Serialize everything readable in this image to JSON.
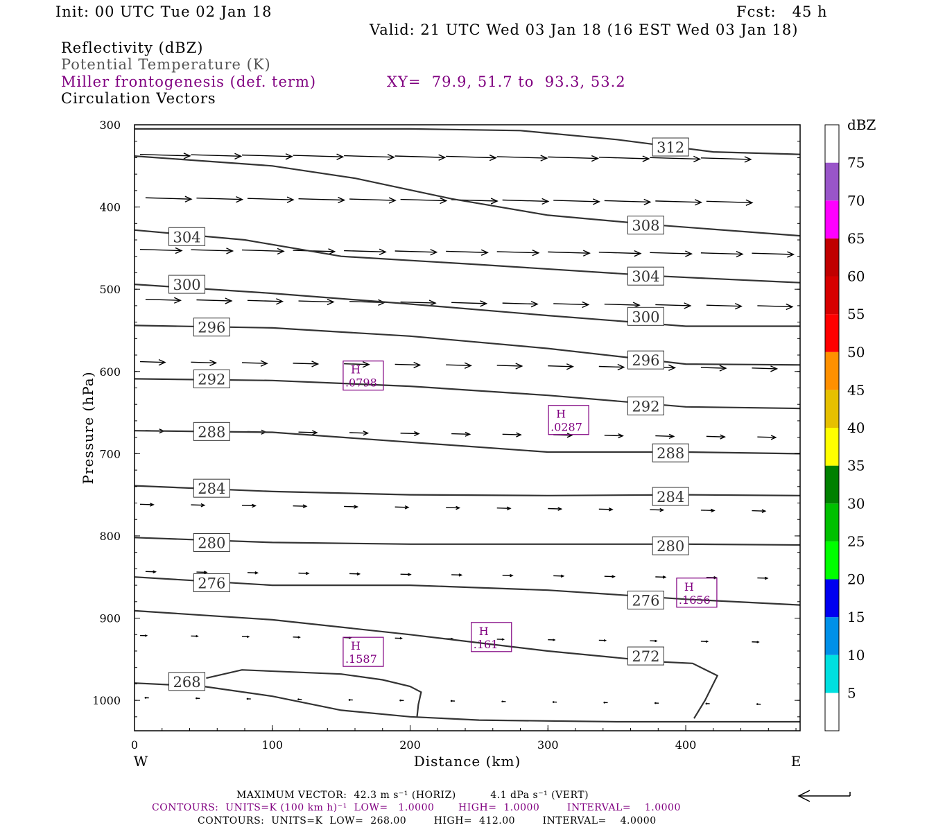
{
  "header": {
    "init": "Init: 00 UTC Tue 02 Jan 18",
    "fcst": "Fcst:   45 h",
    "valid": "Valid: 21 UTC Wed 03 Jan 18 (16 EST Wed 03 Jan 18)"
  },
  "fields": {
    "reflectivity": "Reflectivity (dBZ)",
    "theta": "Potential Temperature (K)",
    "miller": "Miller frontogenesis (def. term)",
    "xy": "XY=  79.9, 51.7 to  93.3, 53.2",
    "vectors": "Circulation Vectors"
  },
  "colors": {
    "contour": "#333333",
    "frontogenesis": "#800080"
  },
  "chart_data": {
    "type": "line",
    "xlabel": "Distance (km)",
    "ylabel": "Pressure (hPa)",
    "x_end_labels": {
      "left": "W",
      "right": "E"
    },
    "xlim": [
      0,
      483
    ],
    "ylim": [
      300,
      1037
    ],
    "y_scale": "linear (inverted)",
    "x_ticks": [
      0,
      100,
      200,
      300,
      400
    ],
    "y_ticks": [
      300,
      400,
      500,
      600,
      700,
      800,
      900,
      1000
    ],
    "theta_contours": [
      {
        "label": "312",
        "points": [
          [
            0,
            305
          ],
          [
            100,
            305
          ],
          [
            200,
            305
          ],
          [
            280,
            307
          ],
          [
            350,
            318
          ],
          [
            420,
            333
          ],
          [
            483,
            336
          ]
        ],
        "labels_at": [
          [
            389,
            327
          ]
        ]
      },
      {
        "label": "308",
        "points": [
          [
            0,
            338
          ],
          [
            100,
            350
          ],
          [
            160,
            365
          ],
          [
            230,
            390
          ],
          [
            300,
            410
          ],
          [
            380,
            422
          ],
          [
            483,
            435
          ]
        ],
        "labels_at": [
          [
            371,
            422
          ]
        ]
      },
      {
        "label": "304",
        "points": [
          [
            0,
            428
          ],
          [
            80,
            440
          ],
          [
            150,
            460
          ],
          [
            250,
            470
          ],
          [
            380,
            484
          ],
          [
            483,
            492
          ]
        ],
        "labels_at": [
          [
            38,
            436
          ],
          [
            371,
            484
          ]
        ]
      },
      {
        "label": "300",
        "points": [
          [
            0,
            494
          ],
          [
            100,
            505
          ],
          [
            200,
            518
          ],
          [
            300,
            532
          ],
          [
            400,
            545
          ],
          [
            483,
            545
          ]
        ],
        "labels_at": [
          [
            38,
            494
          ],
          [
            371,
            533
          ]
        ]
      },
      {
        "label": "296",
        "points": [
          [
            0,
            544
          ],
          [
            100,
            547
          ],
          [
            200,
            557
          ],
          [
            300,
            572
          ],
          [
            400,
            591
          ],
          [
            483,
            592
          ]
        ],
        "labels_at": [
          [
            56,
            546
          ],
          [
            371,
            586
          ]
        ]
      },
      {
        "label": "292",
        "points": [
          [
            0,
            609
          ],
          [
            100,
            611
          ],
          [
            200,
            618
          ],
          [
            300,
            629
          ],
          [
            400,
            643
          ],
          [
            483,
            645
          ]
        ],
        "labels_at": [
          [
            56,
            609
          ],
          [
            371,
            642
          ]
        ]
      },
      {
        "label": "288",
        "points": [
          [
            0,
            672
          ],
          [
            100,
            674
          ],
          [
            200,
            686
          ],
          [
            300,
            698
          ],
          [
            400,
            698
          ],
          [
            483,
            700
          ]
        ],
        "labels_at": [
          [
            56,
            673
          ],
          [
            389,
            699
          ]
        ]
      },
      {
        "label": "284",
        "points": [
          [
            0,
            739
          ],
          [
            100,
            746
          ],
          [
            200,
            750
          ],
          [
            300,
            751
          ],
          [
            400,
            750
          ],
          [
            483,
            751
          ]
        ],
        "labels_at": [
          [
            56,
            742
          ],
          [
            389,
            752
          ]
        ]
      },
      {
        "label": "280",
        "points": [
          [
            0,
            802
          ],
          [
            100,
            808
          ],
          [
            200,
            810
          ],
          [
            300,
            810
          ],
          [
            400,
            810
          ],
          [
            483,
            811
          ]
        ],
        "labels_at": [
          [
            56,
            808
          ],
          [
            389,
            812
          ]
        ]
      },
      {
        "label": "276",
        "points": [
          [
            0,
            850
          ],
          [
            100,
            860
          ],
          [
            200,
            860
          ],
          [
            300,
            866
          ],
          [
            400,
            877
          ],
          [
            483,
            884
          ]
        ],
        "labels_at": [
          [
            56,
            857
          ],
          [
            371,
            878
          ]
        ]
      },
      {
        "label": "272",
        "points": [
          [
            0,
            891
          ],
          [
            100,
            902
          ],
          [
            200,
            920
          ],
          [
            300,
            940
          ],
          [
            380,
            953
          ],
          [
            405,
            955
          ],
          [
            423,
            970
          ],
          [
            414,
            1000
          ],
          [
            406,
            1022
          ]
        ],
        "labels_at": [
          [
            371,
            946
          ]
        ]
      },
      {
        "label": "268",
        "points": [
          [
            0,
            979
          ],
          [
            50,
            983
          ],
          [
            100,
            995
          ],
          [
            150,
            1012
          ],
          [
            200,
            1020
          ],
          [
            250,
            1024
          ],
          [
            300,
            1025
          ],
          [
            350,
            1026
          ],
          [
            400,
            1026
          ],
          [
            483,
            1026
          ]
        ],
        "labels_at": [
          [
            38,
            977
          ]
        ]
      }
    ],
    "closed_contour": {
      "points": [
        [
          52,
          973
        ],
        [
          78,
          963
        ],
        [
          150,
          968
        ],
        [
          180,
          975
        ],
        [
          200,
          983
        ],
        [
          208,
          990
        ],
        [
          206,
          1005
        ],
        [
          205,
          1020
        ]
      ]
    },
    "frontogenesis_maxima": [
      {
        "label": "H",
        "value": ".0798",
        "x": 166,
        "p": 605
      },
      {
        "label": "H",
        "value": ".0287",
        "x": 315,
        "p": 659
      },
      {
        "label": "H",
        "value": ".1656",
        "x": 408,
        "p": 869
      },
      {
        "label": "H",
        "value": ".161",
        "x": 259,
        "p": 923
      },
      {
        "label": "H",
        "value": ".1587",
        "x": 166,
        "p": 941
      }
    ],
    "vector_rows": [
      {
        "p": 336,
        "length": 0.6
      },
      {
        "p": 388,
        "length": 0.55
      },
      {
        "p": 450,
        "length": 0.5
      },
      {
        "p": 510,
        "length": 0.42
      },
      {
        "p": 585,
        "length": 0.3
      },
      {
        "p": 668,
        "length": 0.22
      },
      {
        "p": 757,
        "length": 0.16
      },
      {
        "p": 838,
        "length": 0.12
      },
      {
        "p": 915,
        "length": 0.08
      },
      {
        "p": 990,
        "length": 0.04
      }
    ],
    "colorbar": {
      "title": "dBZ",
      "levels": [
        "5",
        "10",
        "15",
        "20",
        "25",
        "30",
        "35",
        "40",
        "45",
        "50",
        "55",
        "60",
        "65",
        "70",
        "75"
      ],
      "colors": [
        "#ffffff",
        "#00e0e0",
        "#0090e8",
        "#0000f0",
        "#00ff00",
        "#00c000",
        "#008000",
        "#ffff00",
        "#e6c000",
        "#ff9000",
        "#ff0000",
        "#d60000",
        "#c00000",
        "#ff00ff",
        "#9955c9",
        "#ffffff"
      ]
    }
  },
  "footer": {
    "max_vector": "MAXIMUM VECTOR:  42.3 m s⁻¹ (HORIZ)          4.1 dPa s⁻¹ (VERT)",
    "contours_purple": "CONTOURS:  UNITS=K (100 km h)⁻¹  LOW=   1.0000       HIGH=  1.0000        INTERVAL=    1.0000",
    "contours_black": "CONTOURS:  UNITS=K  LOW=  268.00        HIGH=  412.00        INTERVAL=    4.0000"
  }
}
